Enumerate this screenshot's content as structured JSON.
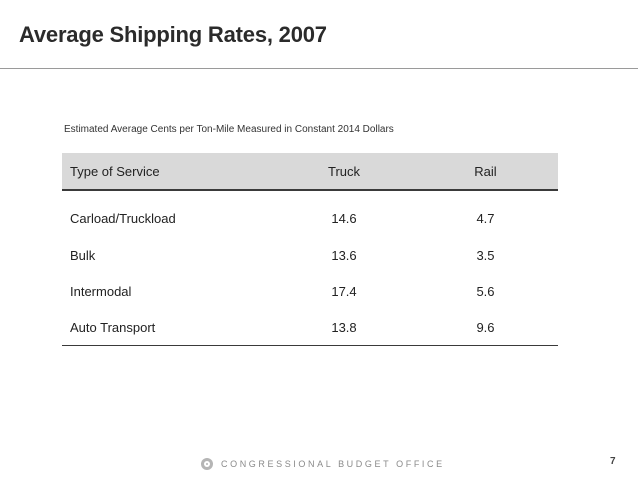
{
  "slide": {
    "title": "Average Shipping Rates, 2007",
    "caption": "Estimated Average Cents per Ton-Mile Measured in Constant 2014 Dollars"
  },
  "table": {
    "headers": {
      "service": "Type of Service",
      "truck": "Truck",
      "rail": "Rail"
    },
    "rows": [
      {
        "service": "Carload/Truckload",
        "truck": "14.6",
        "rail": "4.7"
      },
      {
        "service": "Bulk",
        "truck": "13.6",
        "rail": "3.5"
      },
      {
        "service": "Intermodal",
        "truck": "17.4",
        "rail": "5.6"
      },
      {
        "service": "Auto Transport",
        "truck": "13.8",
        "rail": "9.6"
      }
    ]
  },
  "footer": {
    "organization": "CONGRESSIONAL BUDGET OFFICE",
    "logo_icon": "cbo-seal-icon",
    "page_number": "7"
  }
}
